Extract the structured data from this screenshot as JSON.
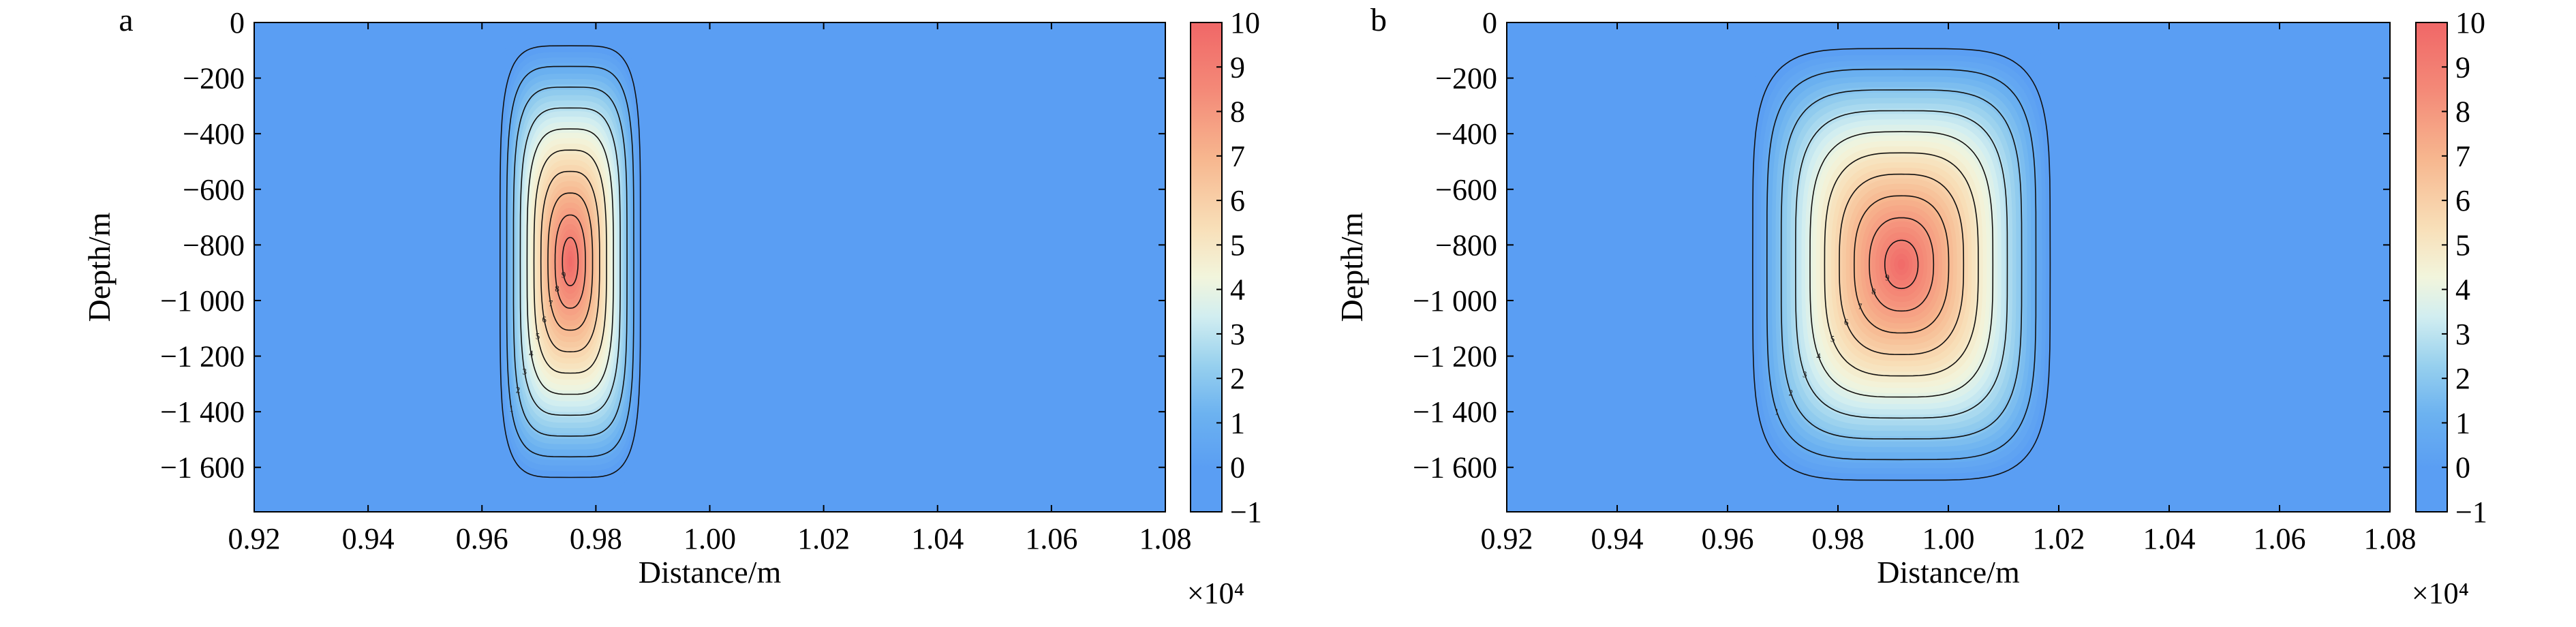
{
  "chart_data": [
    {
      "type": "heatmap",
      "panel_label": "a",
      "xlabel": "Distance/m",
      "ylabel": "Depth/m",
      "x_multiplier": "×10⁴",
      "xlim": [
        0.92,
        1.08
      ],
      "ylim": [
        -1760,
        0
      ],
      "x_ticks": [
        "0.92",
        "0.94",
        "0.96",
        "0.98",
        "1.00",
        "1.02",
        "1.04",
        "1.06",
        "1.08"
      ],
      "y_ticks": [
        "0",
        "−200",
        "−400",
        "−600",
        "−800",
        "−1 000",
        "−1 200",
        "−1 400",
        "−1 600"
      ],
      "colorbar": {
        "min": -1,
        "max": 10,
        "ticks": [
          "10",
          "9",
          "8",
          "7",
          "6",
          "5",
          "4",
          "3",
          "2",
          "1",
          "0",
          "−1"
        ]
      },
      "anomaly": {
        "center_x": 0.9755,
        "center_y": -860,
        "x_extent": [
          0.962,
          0.989
        ],
        "y_extent": [
          -1720,
          -20
        ],
        "peak_value": 10
      },
      "contour_levels": [
        0,
        1,
        2,
        3,
        4,
        5,
        6,
        7,
        8,
        9
      ],
      "contour_labels": [
        "1",
        "2",
        "3",
        "4",
        "5",
        "6",
        "7",
        "8",
        "9"
      ]
    },
    {
      "type": "heatmap",
      "panel_label": "b",
      "xlabel": "Distance/m",
      "ylabel": "Depth/m",
      "x_multiplier": "×10⁴",
      "xlim": [
        0.92,
        1.08
      ],
      "ylim": [
        -1760,
        0
      ],
      "x_ticks": [
        "0.92",
        "0.94",
        "0.96",
        "0.98",
        "1.00",
        "1.02",
        "1.04",
        "1.06",
        "1.08"
      ],
      "y_ticks": [
        "0",
        "−200",
        "−400",
        "−600",
        "−800",
        "−1 000",
        "−1 200",
        "−1 400",
        "−1 600"
      ],
      "colorbar": {
        "min": -1,
        "max": 10,
        "ticks": [
          "10",
          "9",
          "8",
          "7",
          "6",
          "5",
          "4",
          "3",
          "2",
          "1",
          "0",
          "−1"
        ]
      },
      "anomaly": {
        "center_x": 0.9915,
        "center_y": -870,
        "x_extent": [
          0.962,
          1.021
        ],
        "y_extent": [
          -1720,
          -20
        ],
        "peak_value": 10
      },
      "contour_levels": [
        0,
        1,
        2,
        3,
        4,
        5,
        6,
        7,
        8,
        9
      ],
      "contour_labels": [
        "1",
        "2",
        "3",
        "4",
        "5",
        "6",
        "7",
        "8",
        "9"
      ]
    }
  ]
}
